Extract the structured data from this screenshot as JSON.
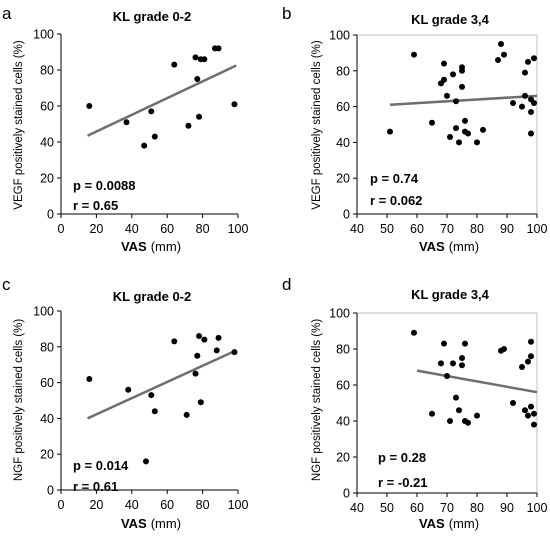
{
  "chart_data": [
    {
      "type": "scatter",
      "panel": "a",
      "title": "KL grade 0-2",
      "xlabel": "VAS",
      "xlabel_unit": "(mm)",
      "ylabel": "VEGF positively stained cells (%)",
      "xlim": [
        0,
        100
      ],
      "ylim": [
        0,
        100
      ],
      "xticks": [
        "0",
        "20",
        "40",
        "60",
        "80",
        "100"
      ],
      "yticks": [
        "0",
        "20",
        "40",
        "60",
        "80",
        "100"
      ],
      "x": [
        16,
        37,
        47,
        51,
        53,
        64,
        72,
        76,
        77,
        78,
        79,
        81,
        87,
        89,
        98
      ],
      "y": [
        60,
        51,
        38,
        57,
        43,
        83,
        49,
        87,
        75,
        54,
        86,
        86,
        92,
        92,
        61
      ],
      "fit": {
        "x": [
          15,
          99
        ],
        "y": [
          43.5,
          82.5
        ]
      },
      "p_text": "p = 0.0088",
      "r_text": "r = 0.65",
      "grid": false
    },
    {
      "type": "scatter",
      "panel": "b",
      "title": "KL grade 3,4",
      "xlabel": "VAS",
      "xlabel_unit": "(mm)",
      "ylabel": "VEGF positively stained cells (%)",
      "xlim": [
        40,
        100
      ],
      "ylim": [
        0,
        100
      ],
      "xticks": [
        "40",
        "50",
        "60",
        "70",
        "80",
        "90",
        "100"
      ],
      "yticks": [
        "0",
        "20",
        "40",
        "60",
        "80",
        "100"
      ],
      "x": [
        51,
        59,
        65,
        68,
        69,
        69,
        70,
        71,
        72,
        73,
        73,
        74,
        75,
        75,
        75,
        76,
        76,
        77,
        80,
        82,
        87,
        88,
        89,
        92,
        95,
        96,
        96,
        97,
        98,
        98,
        98,
        99,
        99
      ],
      "y": [
        46,
        89,
        51,
        73,
        84,
        75,
        66,
        43,
        78,
        63,
        48,
        40,
        80,
        82,
        71,
        52,
        46,
        45,
        40,
        47,
        86,
        95,
        89,
        62,
        60,
        79,
        66,
        85,
        64,
        57,
        45,
        62,
        87
      ],
      "fit": {
        "x": [
          51,
          100
        ],
        "y": [
          61,
          66
        ]
      },
      "p_text": "p = 0.74",
      "r_text": "r = 0.062",
      "grid": false
    },
    {
      "type": "scatter",
      "panel": "c",
      "title": "KL grade 0-2",
      "xlabel": "VAS",
      "xlabel_unit": "(mm)",
      "ylabel": "NGF positively stained cells (%)",
      "xlim": [
        0,
        100
      ],
      "ylim": [
        0,
        100
      ],
      "xticks": [
        "0",
        "20",
        "40",
        "60",
        "80",
        "100"
      ],
      "yticks": [
        "0",
        "20",
        "40",
        "60",
        "80",
        "100"
      ],
      "x": [
        16,
        38,
        48,
        51,
        53,
        64,
        71,
        76,
        77,
        78,
        79,
        81,
        88,
        89,
        98
      ],
      "y": [
        62,
        56,
        16,
        53,
        44,
        83,
        42,
        65,
        75,
        86,
        49,
        84,
        78,
        85,
        77
      ],
      "fit": {
        "x": [
          15,
          99
        ],
        "y": [
          40,
          78
        ]
      },
      "p_text": "p = 0.014",
      "r_text": "r = 0.61",
      "grid": false
    },
    {
      "type": "scatter",
      "panel": "d",
      "title": "KL grade 3,4",
      "xlabel": "VAS",
      "xlabel_unit": "(mm)",
      "ylabel": "NGF positively stained cells (%)",
      "xlim": [
        40,
        100
      ],
      "ylim": [
        0,
        100
      ],
      "xticks": [
        "40",
        "50",
        "60",
        "70",
        "80",
        "90",
        "100"
      ],
      "yticks": [
        "0",
        "20",
        "40",
        "60",
        "80",
        "100"
      ],
      "x": [
        59,
        65,
        68,
        69,
        70,
        71,
        72,
        73,
        74,
        75,
        75,
        76,
        76,
        77,
        80,
        88,
        89,
        92,
        95,
        96,
        97,
        97,
        98,
        98,
        98,
        99,
        99
      ],
      "y": [
        89,
        44,
        72,
        83,
        65,
        40,
        72,
        53,
        46,
        75,
        71,
        83,
        40,
        39,
        43,
        79,
        80,
        50,
        70,
        46,
        73,
        43,
        84,
        76,
        48,
        44,
        38
      ],
      "fit": {
        "x": [
          60,
          100
        ],
        "y": [
          68,
          56
        ]
      },
      "p_text": "p = 0.28",
      "r_text": "r = -0.21",
      "grid": false
    }
  ],
  "colors": {
    "points": "#000000",
    "fit_line": "#6e6e6e",
    "axes": "#000000",
    "frame": "#bfbfbf"
  }
}
